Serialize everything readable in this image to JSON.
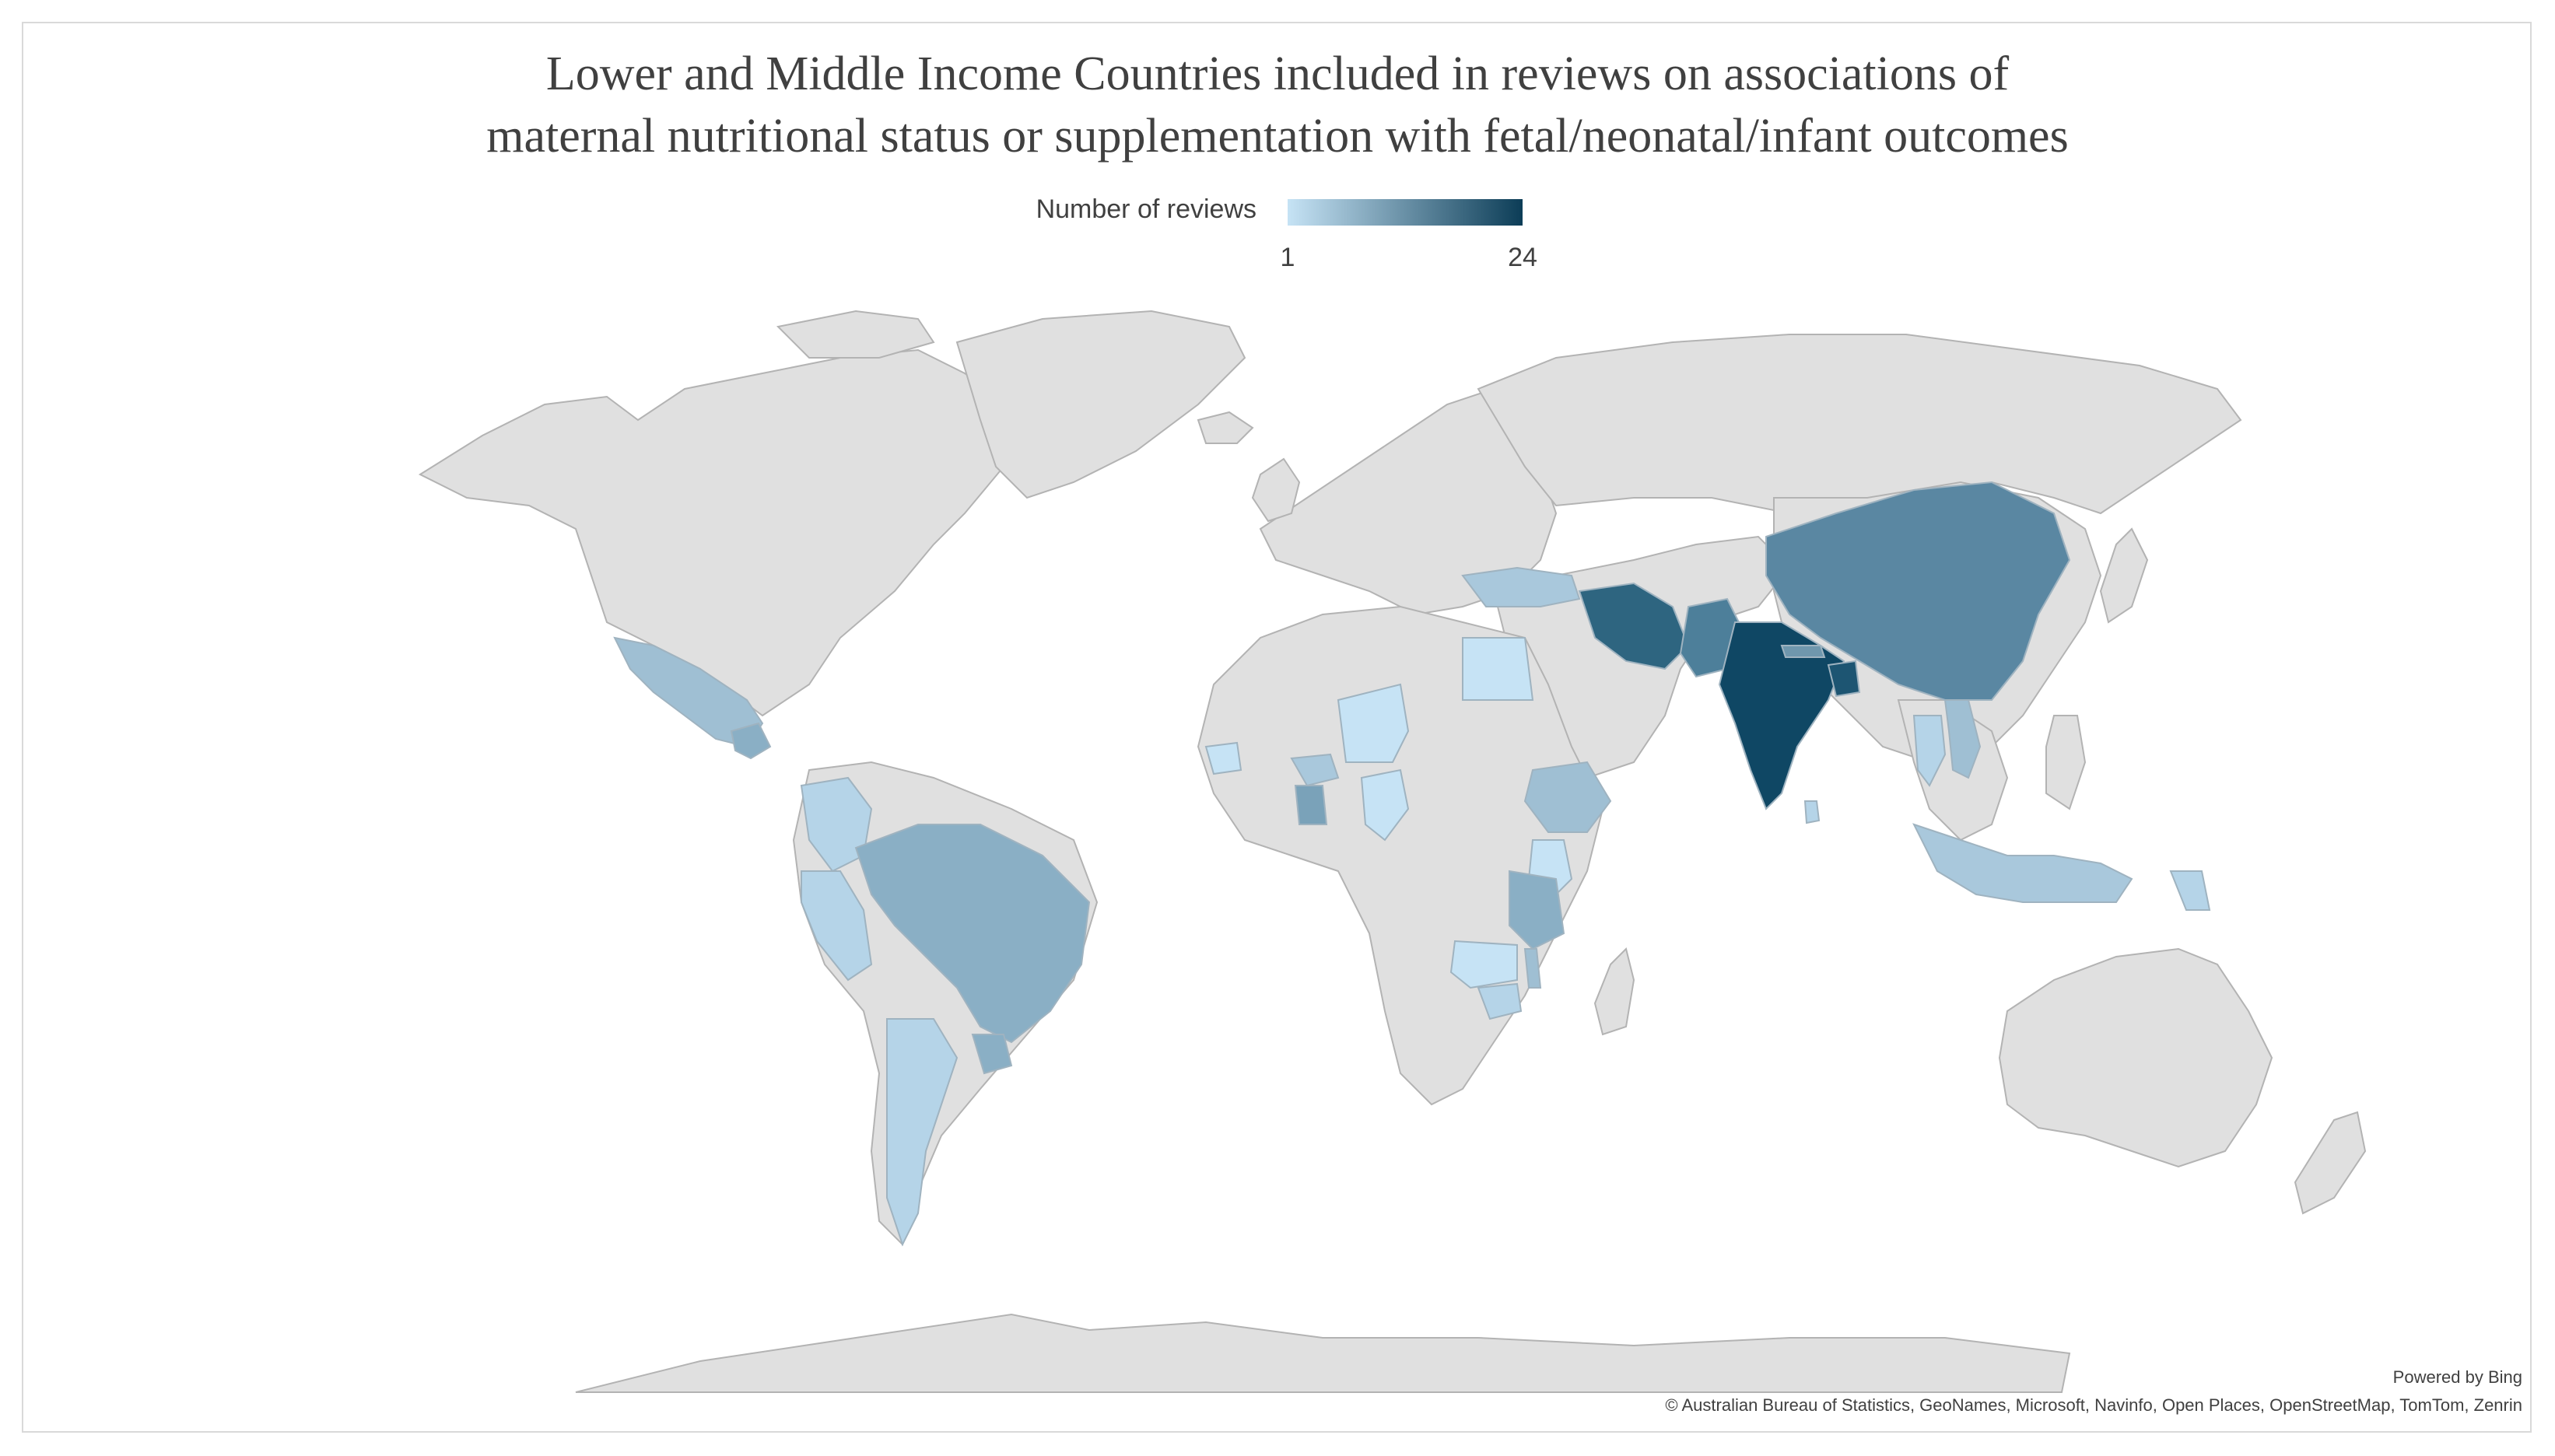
{
  "title": {
    "line1": "Lower and Middle Income Countries included in reviews on associations of",
    "line2": "maternal nutritional status or supplementation with fetal/neonatal/infant outcomes"
  },
  "legend": {
    "label": "Number of reviews",
    "min": "1",
    "max": "24",
    "color_low": "#c6e3f5",
    "color_high": "#0c3d57"
  },
  "credits": {
    "powered_by": "Powered by Bing",
    "attribution": "© Australian Bureau of Statistics, GeoNames, Microsoft, Navinfo, Open Places, OpenStreetMap, TomTom, Zenrin"
  },
  "map_data": {
    "base_color": "#e0e0e0",
    "regions": [
      {
        "name": "India",
        "color": "#0f4764"
      },
      {
        "name": "Iran",
        "color": "#2e6580"
      },
      {
        "name": "Pakistan",
        "color": "#4d7f9a"
      },
      {
        "name": "Bangladesh",
        "color": "#1d5572"
      },
      {
        "name": "Nepal",
        "color": "#6f97ad"
      },
      {
        "name": "China",
        "color": "#5a87a2"
      },
      {
        "name": "Brazil",
        "color": "#8aafc5"
      },
      {
        "name": "Mexico",
        "color": "#9fbfd3"
      },
      {
        "name": "Guatemala",
        "color": "#8aafc5"
      },
      {
        "name": "Colombia",
        "color": "#b5d4e8"
      },
      {
        "name": "Peru",
        "color": "#b5d4e8"
      },
      {
        "name": "Argentina",
        "color": "#b5d4e8"
      },
      {
        "name": "Uruguay",
        "color": "#8aafc5"
      },
      {
        "name": "Turkey",
        "color": "#a9c8dc"
      },
      {
        "name": "Egypt",
        "color": "#c6e3f5"
      },
      {
        "name": "Niger",
        "color": "#c6e3f5"
      },
      {
        "name": "Burkina Faso",
        "color": "#a9c8dc"
      },
      {
        "name": "Ghana",
        "color": "#7aa2b9"
      },
      {
        "name": "Nigeria",
        "color": "#c6e3f5"
      },
      {
        "name": "Senegal",
        "color": "#c6e3f5"
      },
      {
        "name": "Ethiopia",
        "color": "#9fbfd3"
      },
      {
        "name": "Kenya",
        "color": "#c6e3f5"
      },
      {
        "name": "Tanzania",
        "color": "#8aafc5"
      },
      {
        "name": "Malawi",
        "color": "#9fbfd3"
      },
      {
        "name": "Zambia",
        "color": "#c6e3f5"
      },
      {
        "name": "Zimbabwe",
        "color": "#b5d4e8"
      },
      {
        "name": "Vietnam",
        "color": "#9fbfd3"
      },
      {
        "name": "Thailand",
        "color": "#b5d4e8"
      },
      {
        "name": "Indonesia",
        "color": "#a9c8dc"
      },
      {
        "name": "Papua New Guinea",
        "color": "#b5d4e8"
      },
      {
        "name": "Sri Lanka",
        "color": "#b5d4e8"
      }
    ]
  }
}
